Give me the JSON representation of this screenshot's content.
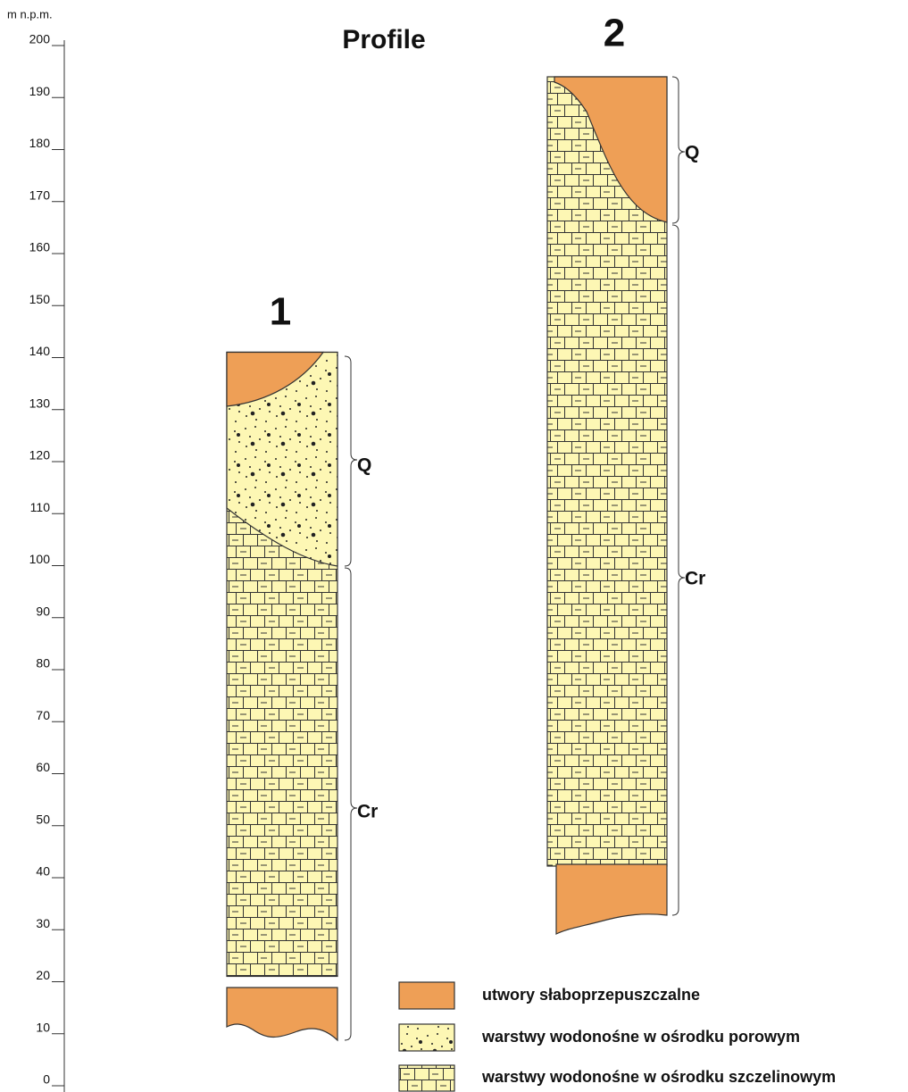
{
  "axis": {
    "label": "m n.p.m.",
    "ticks": [
      0,
      10,
      20,
      30,
      40,
      50,
      60,
      70,
      80,
      90,
      100,
      110,
      120,
      130,
      140,
      150,
      160,
      170,
      180,
      190,
      200
    ]
  },
  "title": "Profile",
  "profiles": [
    {
      "label": "1",
      "units": [
        "Q",
        "Cr"
      ]
    },
    {
      "label": "2",
      "units": [
        "Q",
        "Cr"
      ]
    }
  ],
  "legend": [
    {
      "label": "utwory słaboprzepuszczalne"
    },
    {
      "label": "warstwy wodonośne w ośrodku porowym"
    },
    {
      "label": "warstwy wodonośne w ośrodku szczelinowym"
    }
  ]
}
